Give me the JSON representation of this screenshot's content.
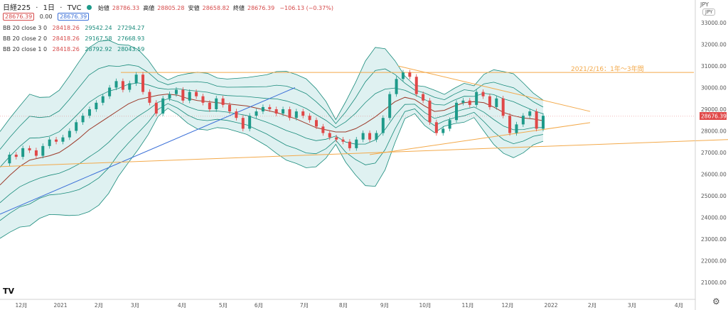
{
  "header": {
    "symbol": "日経225",
    "interval": "1日",
    "source": "TVC",
    "open_label": "始値",
    "open_value": "28786.33",
    "high_label": "高値",
    "high_value": "28805.28",
    "low_label": "安値",
    "low_value": "28658.82",
    "close_label": "終値",
    "close_value": "28676.39",
    "change": "−106.13 (−0.37%)",
    "price_box": "28676.39",
    "spread": "0.00",
    "price_box2": "28676.39"
  },
  "indicators": [
    {
      "label": "BB 20 close 3 0",
      "mid": "28418.26",
      "upper": "29542.24",
      "lower": "27294.27"
    },
    {
      "label": "BB 20 close 2 0",
      "mid": "28418.26",
      "upper": "29167.58",
      "lower": "27668.93"
    },
    {
      "label": "BB 20 close 1 0",
      "mid": "28418.26",
      "upper": "28792.92",
      "lower": "28043.59"
    }
  ],
  "currency": "JPY",
  "currency_sub": "JPY",
  "logo_text": "TV",
  "settings_icon": "gear-icon",
  "colors": {
    "band_fill": "#dff1f1",
    "band_line": "#178a7a",
    "middle_line": "#9c3a2a",
    "up_candle": "#1e9a8a",
    "down_candle": "#e04848",
    "trend_blue": "#3a6fd8",
    "trend_orange": "#f3a94a",
    "price_line": "#e57373"
  },
  "chart_data": {
    "type": "candlestick",
    "title": "",
    "ylabel": "",
    "ylim": [
      20600,
      33400
    ],
    "y_ticks": [
      21000,
      22000,
      23000,
      24000,
      25000,
      26000,
      27000,
      28000,
      29000,
      30000,
      31000,
      32000,
      33000
    ],
    "x_ticks": [
      "12月",
      "2021",
      "2月",
      "3月",
      "4月",
      "5月",
      "6月",
      "7月",
      "8月",
      "9月",
      "10月",
      "11月",
      "12月",
      "2022",
      "2月",
      "3月",
      "4月"
    ],
    "last_price": 28676.39,
    "close_series": [
      26500,
      26900,
      26800,
      27200,
      27100,
      26850,
      27300,
      27600,
      27500,
      27700,
      28000,
      28400,
      28700,
      29000,
      29300,
      29600,
      30000,
      30300,
      29900,
      30200,
      30600,
      29800,
      29300,
      28800,
      29500,
      29700,
      29900,
      29400,
      29800,
      29600,
      29300,
      29000,
      29500,
      29200,
      28900,
      28600,
      28100,
      28700,
      28900,
      29100,
      29000,
      28800,
      29000,
      28600,
      28900,
      28700,
      28500,
      28200,
      27900,
      27700,
      27600,
      27500,
      27200,
      27600,
      27900,
      27600,
      27900,
      28600,
      29700,
      30400,
      30700,
      30500,
      29700,
      29400,
      28400,
      27900,
      28100,
      28500,
      29300,
      29400,
      29200,
      29800,
      29600,
      29100,
      29500,
      28700,
      27900,
      28300,
      28700,
      28900,
      28100,
      28700
    ],
    "bb_mid": [
      25500,
      25950,
      26350,
      26650,
      26750,
      26850,
      27000,
      27300,
      27650,
      28050,
      28350,
      28650,
      28950,
      29250,
      29450,
      29550,
      29650,
      29700,
      29650,
      29500,
      29400,
      29350,
      29300,
      29250,
      29200,
      29150,
      29050,
      28950,
      28850,
      28700,
      28550,
      28350,
      28150,
      28050,
      27950,
      27950,
      28100,
      28350,
      28650,
      29000,
      29350,
      29550,
      29450,
      29150,
      28900,
      28950,
      29150,
      29300,
      29350,
      29300,
      29100,
      28850,
      28700,
      28600,
      28550,
      28470
    ],
    "bb_mid_x_range": [
      "12月",
      "2022"
    ],
    "trendlines": [
      {
        "name": "",
        "color": "#3a6fd8",
        "from": [
          0,
          24150
        ],
        "to": [
          415,
          30000
        ]
      },
      {
        "name": "2021/2/16：1年〜3年間",
        "color": "#f3a94a",
        "from": [
          170,
          30700
        ],
        "to": [
          976,
          30700
        ]
      },
      {
        "name": "",
        "color": "#f3a94a",
        "from": [
          0,
          26350
        ],
        "to": [
          1024,
          27600
        ]
      },
      {
        "name": "",
        "color": "#f3a94a",
        "from": [
          560,
          31000
        ],
        "to": [
          830,
          28900
        ]
      },
      {
        "name": "",
        "color": "#f3a94a",
        "from": [
          520,
          26900
        ],
        "to": [
          830,
          28380
        ]
      }
    ],
    "annotation": "2021/2/16：1年〜3年間",
    "legend": "top-left",
    "grid": false
  }
}
